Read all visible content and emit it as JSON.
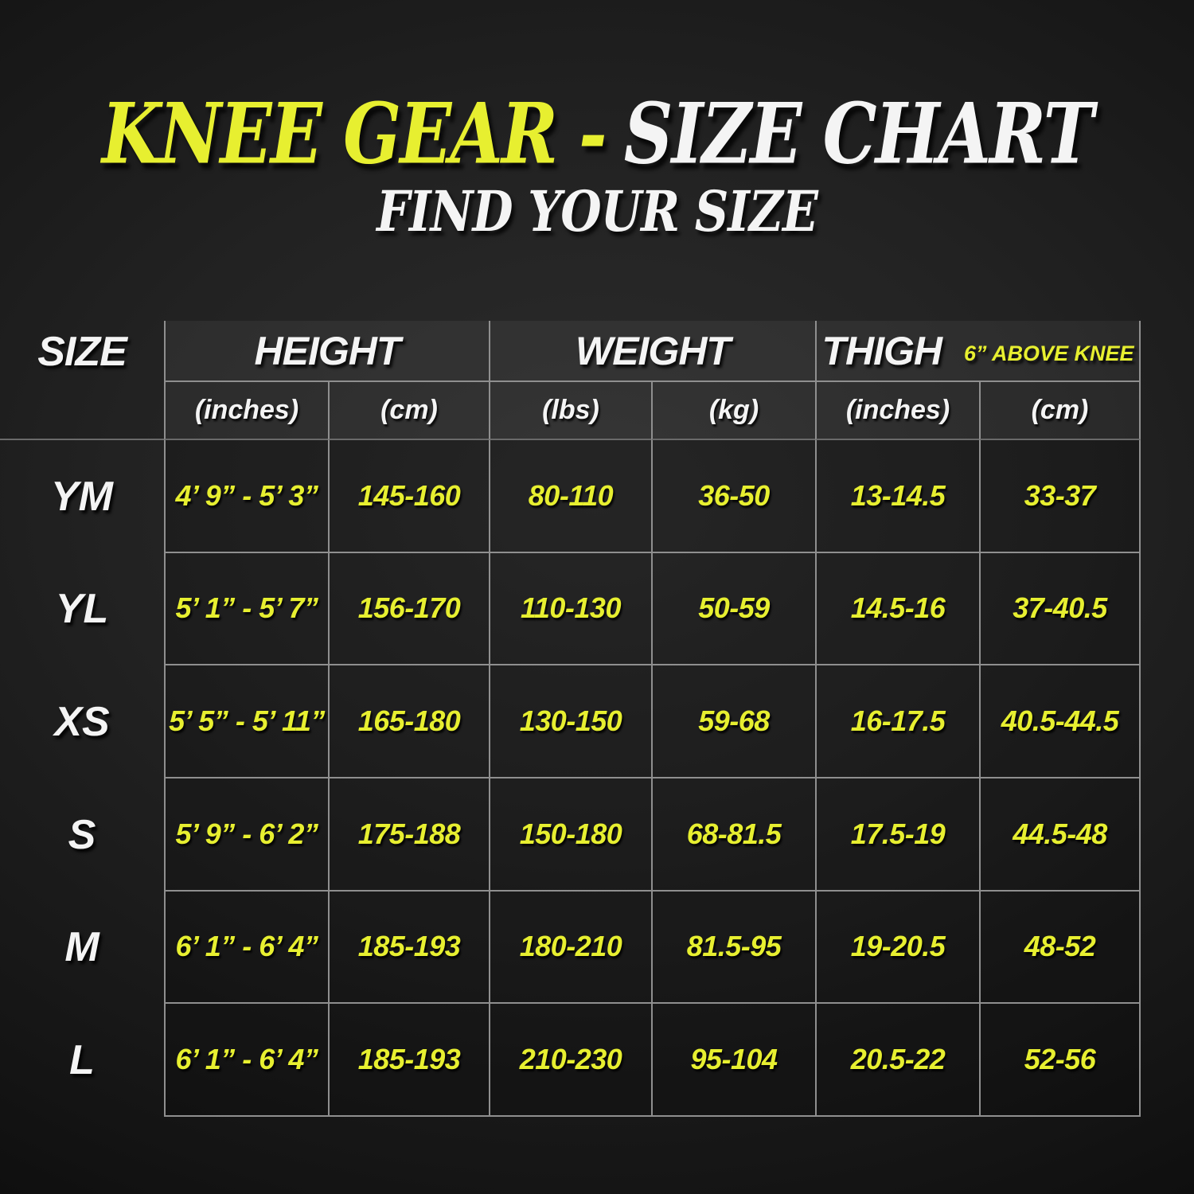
{
  "colors": {
    "accent_yellow": "#e7ef30",
    "text_white": "#f4f4f4",
    "grid_line": "#8f8f8f",
    "background": "#1a1a1a"
  },
  "header": {
    "title_yellow": "KNEE GEAR -",
    "title_white": "SIZE CHART",
    "subtitle": "FIND YOUR SIZE"
  },
  "table": {
    "size_col_header": "SIZE",
    "groups": [
      {
        "label": "HEIGHT",
        "note": "",
        "subcols": [
          "(inches)",
          "(cm)"
        ]
      },
      {
        "label": "WEIGHT",
        "note": "",
        "subcols": [
          "(lbs)",
          "(kg)"
        ]
      },
      {
        "label": "THIGH",
        "note": "6” ABOVE KNEE",
        "subcols": [
          "(inches)",
          "(cm)"
        ]
      }
    ],
    "rows": [
      {
        "size": "YM",
        "values": [
          "4’ 9” - 5’ 3”",
          "145-160",
          "80-110",
          "36-50",
          "13-14.5",
          "33-37"
        ]
      },
      {
        "size": "YL",
        "values": [
          "5’ 1” - 5’ 7”",
          "156-170",
          "110-130",
          "50-59",
          "14.5-16",
          "37-40.5"
        ]
      },
      {
        "size": "XS",
        "values": [
          "5’ 5” - 5’ 11”",
          "165-180",
          "130-150",
          "59-68",
          "16-17.5",
          "40.5-44.5"
        ]
      },
      {
        "size": "S",
        "values": [
          "5’ 9” - 6’ 2”",
          "175-188",
          "150-180",
          "68-81.5",
          "17.5-19",
          "44.5-48"
        ]
      },
      {
        "size": "M",
        "values": [
          "6’ 1” - 6’ 4”",
          "185-193",
          "180-210",
          "81.5-95",
          "19-20.5",
          "48-52"
        ]
      },
      {
        "size": "L",
        "values": [
          "6’ 1” - 6’ 4”",
          "185-193",
          "210-230",
          "95-104",
          "20.5-22",
          "52-56"
        ]
      }
    ]
  },
  "chart_data": {
    "type": "table",
    "title": "KNEE GEAR - SIZE CHART",
    "subtitle": "FIND YOUR SIZE",
    "columns": [
      "SIZE",
      "HEIGHT (inches)",
      "HEIGHT (cm)",
      "WEIGHT (lbs)",
      "WEIGHT (kg)",
      "THIGH 6\" ABOVE KNEE (inches)",
      "THIGH 6\" ABOVE KNEE (cm)"
    ],
    "rows": [
      [
        "YM",
        "4' 9\" - 5' 3\"",
        "145-160",
        "80-110",
        "36-50",
        "13-14.5",
        "33-37"
      ],
      [
        "YL",
        "5' 1\" - 5' 7\"",
        "156-170",
        "110-130",
        "50-59",
        "14.5-16",
        "37-40.5"
      ],
      [
        "XS",
        "5' 5\" - 5' 11\"",
        "165-180",
        "130-150",
        "59-68",
        "16-17.5",
        "40.5-44.5"
      ],
      [
        "S",
        "5' 9\" - 6' 2\"",
        "175-188",
        "150-180",
        "68-81.5",
        "17.5-19",
        "44.5-48"
      ],
      [
        "M",
        "6' 1\" - 6' 4\"",
        "185-193",
        "180-210",
        "81.5-95",
        "19-20.5",
        "48-52"
      ],
      [
        "L",
        "6' 1\" - 6' 4\"",
        "185-193",
        "210-230",
        "95-104",
        "20.5-22",
        "52-56"
      ]
    ],
    "layout": {
      "grid": true,
      "header_groups": [
        "HEIGHT",
        "WEIGHT",
        "THIGH"
      ],
      "units_row": [
        "(inches)",
        "(cm)",
        "(lbs)",
        "(kg)",
        "(inches)",
        "(cm)"
      ]
    }
  }
}
